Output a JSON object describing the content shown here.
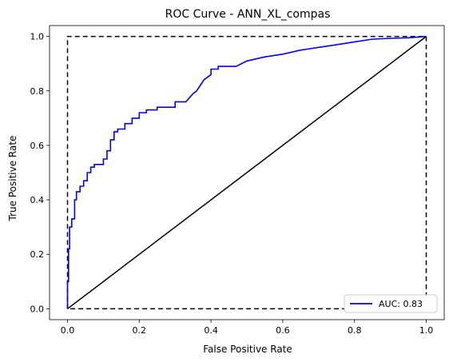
{
  "chart_data": {
    "type": "line",
    "title": "ROC Curve - ANN_XL_compas",
    "xlabel": "False Positive Rate",
    "ylabel": "True Positive Rate",
    "xlim": [
      -0.05,
      1.05
    ],
    "ylim": [
      -0.04,
      1.04
    ],
    "xticks": [
      0.0,
      0.2,
      0.4,
      0.6,
      0.8,
      1.0
    ],
    "xtick_labels": [
      "0.0",
      "0.2",
      "0.4",
      "0.6",
      "0.8",
      "1.0"
    ],
    "yticks": [
      0.0,
      0.2,
      0.4,
      0.6,
      0.8,
      1.0
    ],
    "ytick_labels": [
      "0.0",
      "0.2",
      "0.4",
      "0.6",
      "0.8",
      "1.0"
    ],
    "grid": false,
    "legend_position": "lower-right",
    "series": [
      {
        "name": "AUC: 0.83",
        "color": "#0000ff",
        "style": "solid",
        "x": [
          0.0,
          0.0,
          0.003,
          0.003,
          0.006,
          0.006,
          0.012,
          0.012,
          0.02,
          0.02,
          0.025,
          0.025,
          0.035,
          0.035,
          0.045,
          0.045,
          0.055,
          0.055,
          0.065,
          0.065,
          0.075,
          0.075,
          0.1,
          0.1,
          0.11,
          0.11,
          0.12,
          0.12,
          0.13,
          0.13,
          0.14,
          0.14,
          0.16,
          0.16,
          0.18,
          0.18,
          0.2,
          0.2,
          0.22,
          0.22,
          0.25,
          0.25,
          0.3,
          0.3,
          0.33,
          0.35,
          0.36,
          0.37,
          0.38,
          0.39,
          0.4,
          0.4,
          0.42,
          0.42,
          0.47,
          0.5,
          0.55,
          0.6,
          0.65,
          0.7,
          0.75,
          0.8,
          0.85,
          0.9,
          0.95,
          1.0
        ],
        "y": [
          0.0,
          0.1,
          0.1,
          0.22,
          0.22,
          0.3,
          0.3,
          0.33,
          0.33,
          0.4,
          0.4,
          0.43,
          0.43,
          0.45,
          0.45,
          0.47,
          0.47,
          0.5,
          0.5,
          0.52,
          0.52,
          0.53,
          0.53,
          0.55,
          0.55,
          0.58,
          0.58,
          0.62,
          0.62,
          0.65,
          0.65,
          0.66,
          0.66,
          0.68,
          0.68,
          0.7,
          0.7,
          0.72,
          0.72,
          0.73,
          0.73,
          0.74,
          0.74,
          0.76,
          0.76,
          0.79,
          0.8,
          0.82,
          0.84,
          0.85,
          0.86,
          0.88,
          0.88,
          0.89,
          0.89,
          0.91,
          0.925,
          0.935,
          0.95,
          0.96,
          0.97,
          0.98,
          0.99,
          0.993,
          0.995,
          1.0
        ]
      }
    ],
    "reference_lines": [
      {
        "x": [
          0.0,
          1.0
        ],
        "y": [
          0.0,
          1.0
        ],
        "color": "#000000",
        "style": "solid"
      },
      {
        "x": [
          0.0,
          0.0,
          1.0,
          1.0,
          0.0
        ],
        "y": [
          0.0,
          1.0,
          1.0,
          0.0,
          0.0
        ],
        "color": "#000000",
        "style": "dashed"
      }
    ]
  }
}
